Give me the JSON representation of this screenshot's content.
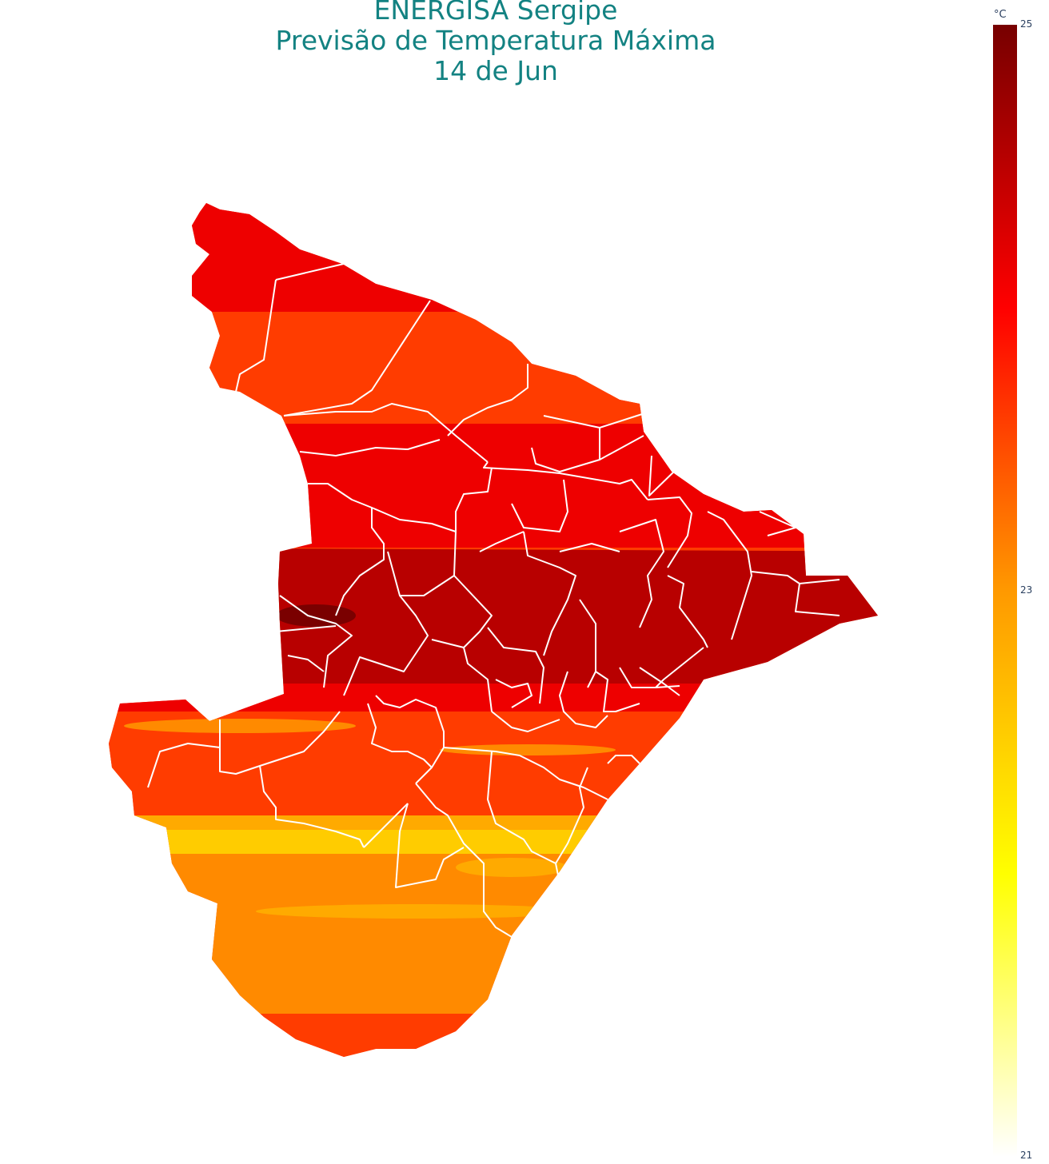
{
  "title": {
    "line1": "ENERGISA Sergipe",
    "line2": "Previsão de Temperatura Máxima",
    "line3": "14 de Jun"
  },
  "colorbar": {
    "unit": "°C",
    "tick_max": "25",
    "tick_mid": "23",
    "tick_min": "21",
    "min": 21,
    "max": 25,
    "colors": [
      "#ffffff",
      "#ffff00",
      "#ff9900",
      "#ff0000",
      "#770000"
    ]
  },
  "map": {
    "region": "Sergipe",
    "boundary_color": "#ffffff",
    "temperature_zones_north_to_south": [
      {
        "zone": "far north",
        "value_c": 24.2
      },
      {
        "zone": "north",
        "value_c": 23.9
      },
      {
        "zone": "north-central",
        "value_c": 24.2
      },
      {
        "zone": "central",
        "value_c": 24.5
      },
      {
        "zone": "west-central hotspot",
        "value_c": 24.9
      },
      {
        "zone": "south-central",
        "value_c": 23.9
      },
      {
        "zone": "south",
        "value_c": 22.8
      },
      {
        "zone": "southern coast",
        "value_c": 23.3
      },
      {
        "zone": "far south",
        "value_c": 23.9
      }
    ]
  }
}
